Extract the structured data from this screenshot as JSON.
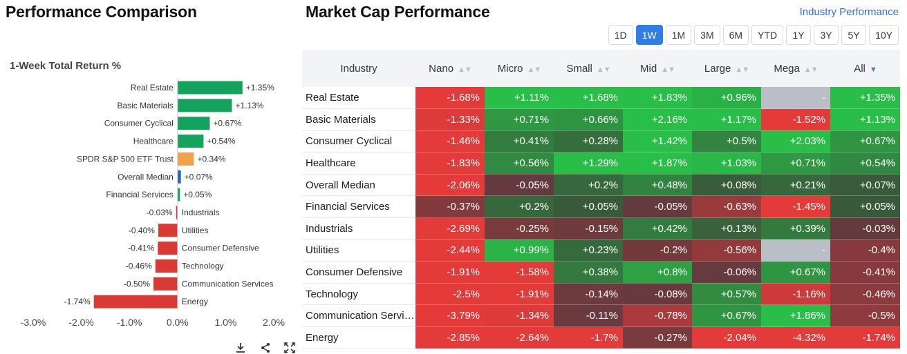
{
  "left_title": "Performance Comparison",
  "right_title": "Market Cap Performance",
  "industry_link": "Industry Performance",
  "chart_subtitle": "1-Week Total Return %",
  "chart_data": {
    "type": "bar",
    "orientation": "horizontal",
    "title": "1-Week Total Return %",
    "categories": [
      "Real Estate",
      "Basic Materials",
      "Consumer Cyclical",
      "Healthcare",
      "SPDR S&P 500 ETF Trust",
      "Overall Median",
      "Financial Services",
      "Industrials",
      "Utilities",
      "Consumer Defensive",
      "Technology",
      "Communication Services",
      "Energy"
    ],
    "values": [
      1.35,
      1.13,
      0.67,
      0.54,
      0.34,
      0.07,
      0.05,
      -0.03,
      -0.4,
      -0.41,
      -0.46,
      -0.5,
      -1.74
    ],
    "value_labels": [
      "+1.35%",
      "+1.13%",
      "+0.67%",
      "+0.54%",
      "+0.34%",
      "+0.07%",
      "+0.05%",
      "-0.03%",
      "-0.40%",
      "-0.41%",
      "-0.46%",
      "-0.50%",
      "-1.74%"
    ],
    "bar_colors": [
      "#14a35c",
      "#14a35c",
      "#14a35c",
      "#14a35c",
      "#f0a24e",
      "#2563b8",
      "#14a35c",
      "#d93a34",
      "#d93a34",
      "#d93a34",
      "#d93a34",
      "#d93a34",
      "#d93a34"
    ],
    "xlim": [
      -3.0,
      2.0
    ],
    "xticks": [
      -3.0,
      -2.0,
      -1.0,
      0.0,
      1.0,
      2.0
    ],
    "xtick_labels": [
      "-3.0%",
      "-2.0%",
      "-1.0%",
      "0.0%",
      "1.0%",
      "2.0%"
    ],
    "grid": false
  },
  "tools": {
    "download": "download-icon",
    "share": "share-icon",
    "expand": "expand-icon"
  },
  "periods": {
    "items": [
      "1D",
      "1W",
      "1M",
      "3M",
      "6M",
      "YTD",
      "1Y",
      "3Y",
      "5Y",
      "10Y"
    ],
    "active": "1W"
  },
  "table": {
    "header_label": "Industry",
    "columns": [
      "Nano",
      "Micro",
      "Small",
      "Mid",
      "Large",
      "Mega",
      "All"
    ],
    "sorted_column": "All",
    "rows": [
      {
        "name": "Real Estate",
        "values": [
          "-1.68%",
          "+1.11%",
          "+1.68%",
          "+1.83%",
          "+0.96%",
          "-",
          "+1.35%"
        ]
      },
      {
        "name": "Basic Materials",
        "values": [
          "-1.33%",
          "+0.71%",
          "+0.66%",
          "+2.16%",
          "+1.17%",
          "-1.52%",
          "+1.13%"
        ]
      },
      {
        "name": "Consumer Cyclical",
        "values": [
          "-1.46%",
          "+0.41%",
          "+0.28%",
          "+1.42%",
          "+0.5%",
          "+2.03%",
          "+0.67%"
        ]
      },
      {
        "name": "Healthcare",
        "values": [
          "-1.83%",
          "+0.56%",
          "+1.29%",
          "+1.87%",
          "+1.03%",
          "+0.71%",
          "+0.54%"
        ]
      },
      {
        "name": "Overall Median",
        "values": [
          "-2.06%",
          "-0.05%",
          "+0.2%",
          "+0.48%",
          "+0.08%",
          "+0.21%",
          "+0.07%"
        ]
      },
      {
        "name": "Financial Services",
        "values": [
          "-0.37%",
          "+0.2%",
          "+0.05%",
          "-0.05%",
          "-0.63%",
          "-1.45%",
          "+0.05%"
        ]
      },
      {
        "name": "Industrials",
        "values": [
          "-2.69%",
          "-0.25%",
          "-0.15%",
          "+0.42%",
          "+0.13%",
          "+0.39%",
          "-0.03%"
        ]
      },
      {
        "name": "Utilities",
        "values": [
          "-2.44%",
          "+0.99%",
          "+0.23%",
          "-0.2%",
          "-0.56%",
          "-",
          "-0.4%"
        ]
      },
      {
        "name": "Consumer Defensive",
        "values": [
          "-1.91%",
          "-1.58%",
          "+0.38%",
          "+0.8%",
          "-0.06%",
          "+0.67%",
          "-0.41%"
        ]
      },
      {
        "name": "Technology",
        "values": [
          "-2.5%",
          "-1.91%",
          "-0.14%",
          "-0.08%",
          "+0.57%",
          "-1.16%",
          "-0.46%"
        ]
      },
      {
        "name": "Communication Services",
        "values": [
          "-3.79%",
          "-1.34%",
          "-0.11%",
          "-0.78%",
          "+0.67%",
          "+1.86%",
          "-0.5%"
        ]
      },
      {
        "name": "Energy",
        "values": [
          "-2.85%",
          "-2.64%",
          "-1.7%",
          "-0.27%",
          "-2.04%",
          "-4.32%",
          "-1.74%"
        ]
      }
    ]
  }
}
